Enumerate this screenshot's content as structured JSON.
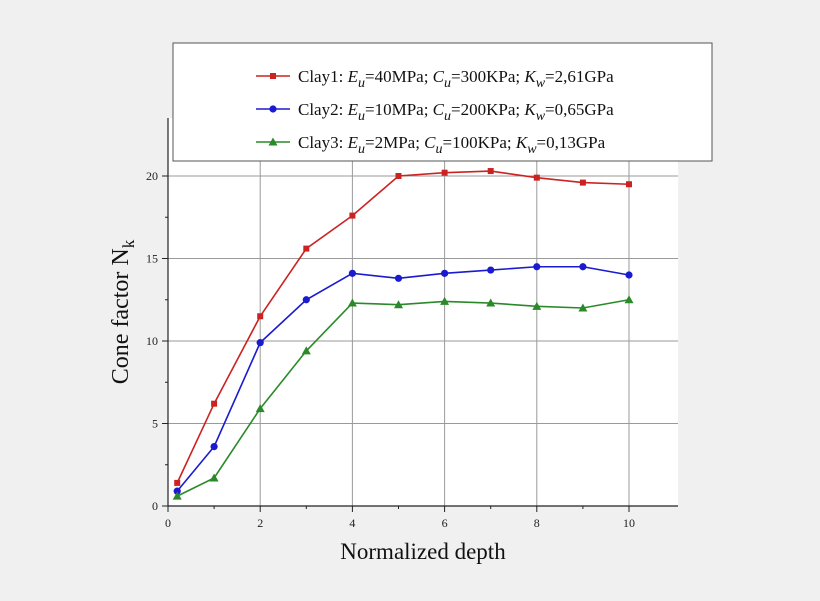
{
  "chart_data": {
    "type": "line",
    "title": "",
    "xlabel": "Normalized depth",
    "ylabel": "Cone factor N",
    "ylabel_sub": "k",
    "xlim": [
      0,
      10
    ],
    "ylim": [
      0,
      22
    ],
    "x_ticks": [
      "0",
      "2",
      "4",
      "6",
      "8",
      "10"
    ],
    "y_ticks": [
      "0",
      "5",
      "10",
      "15",
      "20"
    ],
    "grid": true,
    "legend_position": "top",
    "series": [
      {
        "name": "Clay1: Eu=40MPa; Cu=300KPa; Kw=2,61GPa",
        "legend_parts": {
          "prefix": "Clay1: ",
          "e": "40MPa; ",
          "c": "300KPa; ",
          "k": "2,61GPa"
        },
        "color": "#cc2222",
        "marker": "square",
        "x": [
          0.2,
          1,
          2,
          3,
          4,
          5,
          6,
          7,
          8,
          9,
          10
        ],
        "y": [
          1.4,
          6.2,
          11.5,
          15.6,
          17.6,
          20.0,
          20.2,
          20.3,
          19.9,
          19.6,
          19.5
        ]
      },
      {
        "name": "Clay2: Eu=10MPa; Cu=200KPa; Kw=0,65GPa",
        "legend_parts": {
          "prefix": "Clay2: ",
          "e": "10MPa; ",
          "c": "200KPa; ",
          "k": "0,65GPa"
        },
        "color": "#1a1ad0",
        "marker": "circle",
        "x": [
          0.2,
          1,
          2,
          3,
          4,
          5,
          6,
          7,
          8,
          9,
          10
        ],
        "y": [
          0.9,
          3.6,
          9.9,
          12.5,
          14.1,
          13.8,
          14.1,
          14.3,
          14.5,
          14.5,
          14.0
        ]
      },
      {
        "name": "Clay3: Eu=2MPa; Cu=100KPa; Kw=0,13GPa",
        "legend_parts": {
          "prefix": "Clay3: ",
          "e": "2MPa; ",
          "c": "100KPa; ",
          "k": "0,13GPa"
        },
        "color": "#2a8a2a",
        "marker": "triangle",
        "x": [
          0.2,
          1,
          2,
          3,
          4,
          5,
          6,
          7,
          8,
          9,
          10
        ],
        "y": [
          0.6,
          1.7,
          5.9,
          9.4,
          12.3,
          12.2,
          12.4,
          12.3,
          12.1,
          12.0,
          12.5
        ]
      }
    ]
  }
}
